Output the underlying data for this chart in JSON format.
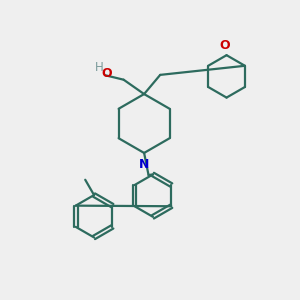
{
  "bg_color": "#efefef",
  "bond_color": "#2d6b5e",
  "N_color": "#0000cc",
  "O_color": "#cc0000",
  "H_color": "#7a9a9a",
  "line_width": 1.6,
  "figsize": [
    3.0,
    3.0
  ],
  "dpi": 100,
  "xlim": [
    0,
    10
  ],
  "ylim": [
    0,
    10
  ]
}
